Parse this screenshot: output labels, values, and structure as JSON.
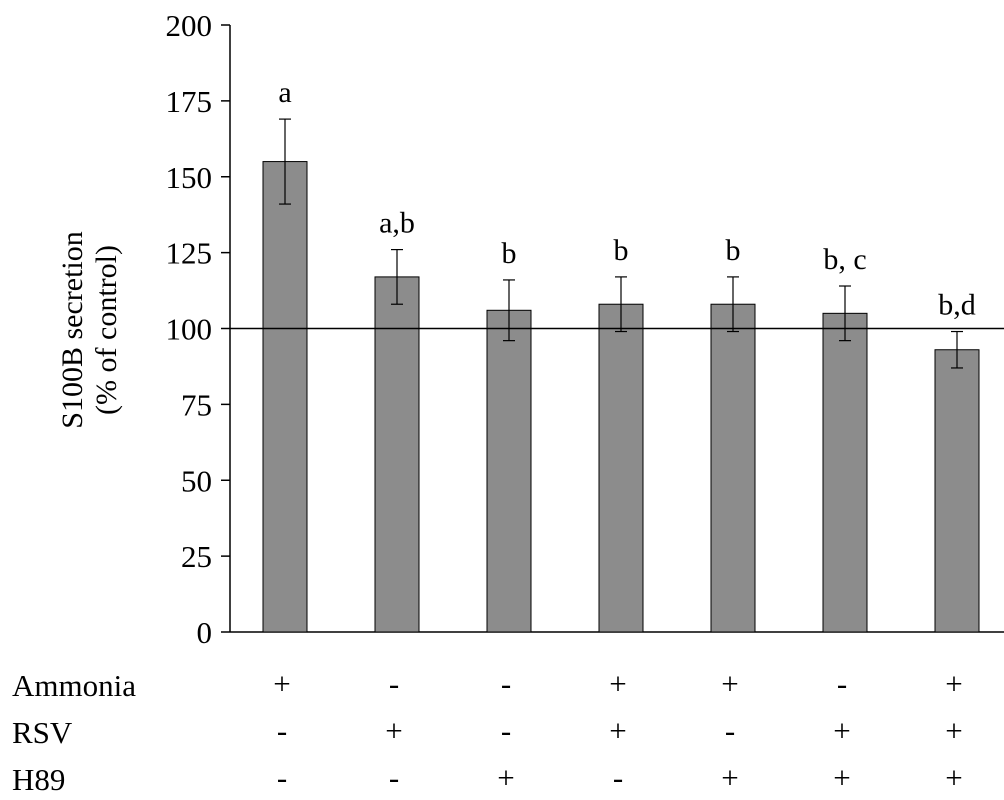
{
  "chart_data": {
    "type": "bar",
    "ylabel_line1": "S100B secretion",
    "ylabel_line2": "(% of control)",
    "ylim": [
      0,
      200
    ],
    "yticks": [
      0,
      25,
      50,
      75,
      100,
      125,
      150,
      175,
      200
    ],
    "reference_line": 100,
    "bar_color": "#8c8c8c",
    "values": [
      155,
      117,
      106,
      108,
      108,
      105,
      93
    ],
    "errors": [
      14,
      9,
      10,
      9,
      9,
      9,
      6
    ],
    "significance": [
      "a",
      "a,b",
      "b",
      "b",
      "b",
      "b, c",
      "b,d"
    ],
    "treatments": [
      {
        "name": "Ammonia",
        "signs": [
          "+",
          "-",
          "-",
          "+",
          "+",
          "-",
          "+"
        ]
      },
      {
        "name": "RSV",
        "signs": [
          "-",
          "+",
          "-",
          "+",
          "-",
          "+",
          "+"
        ]
      },
      {
        "name": "H89",
        "signs": [
          "-",
          "-",
          "+",
          "-",
          "+",
          "+",
          "+"
        ]
      }
    ]
  }
}
